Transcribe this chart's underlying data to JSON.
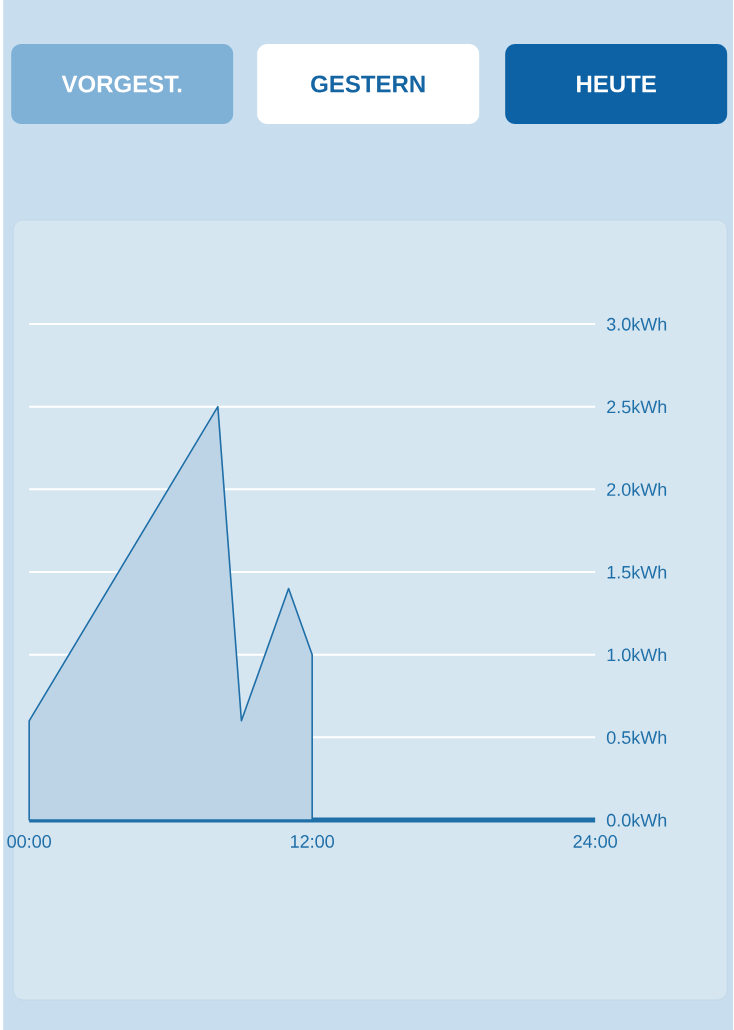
{
  "chart_data": {
    "type": "area",
    "annotations": [
      "VORGEST.",
      "GESTERN",
      "HEUTE"
    ],
    "x": [
      0,
      8,
      9,
      11,
      12
    ],
    "series": [
      {
        "color": "#1f6fa8",
        "values": [
          0.6,
          2.5,
          0.6,
          1.4,
          1.0
        ]
      }
    ],
    "xlim": [
      0,
      24
    ],
    "ylim": [
      0,
      3.0
    ],
    "xticks": [
      {
        "value": 0,
        "label": "00:00"
      },
      {
        "value": 12,
        "label": "12:00"
      },
      {
        "value": 24,
        "label": "24:00"
      }
    ],
    "yticks": [
      {
        "value": 0,
        "label": "0.0kWh"
      },
      {
        "value": 0.5,
        "label": "0.5kWh"
      },
      {
        "value": 1.0,
        "label": "1.0kWh"
      },
      {
        "value": 1.5,
        "label": "1.5kWh"
      },
      {
        "value": 2.0,
        "label": "2.0kWh"
      },
      {
        "value": 2.5,
        "label": "2.5kWh"
      },
      {
        "value": 3.0,
        "label": "3.0kWh"
      }
    ],
    "grid": "y"
  }
}
